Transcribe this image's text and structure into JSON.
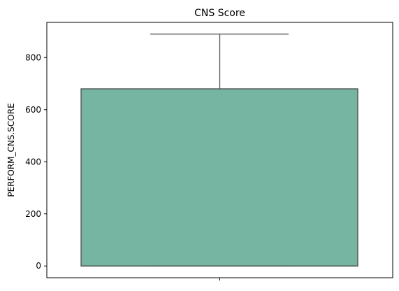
{
  "chart_data": {
    "type": "box",
    "title": "CNS Score",
    "xlabel": "",
    "ylabel": "PERFORM_CNS.SCORE",
    "ylim": [
      -45,
      935
    ],
    "yticks": [
      0,
      200,
      400,
      600,
      800
    ],
    "grid": false,
    "series": [
      {
        "whisker_low": 0,
        "q1": 0,
        "median": 0,
        "q3": 680,
        "whisker_high": 890
      }
    ],
    "colors": {
      "box_fill": "#75b5a1",
      "line": "#4d4d4d",
      "axis": "#000000"
    }
  }
}
